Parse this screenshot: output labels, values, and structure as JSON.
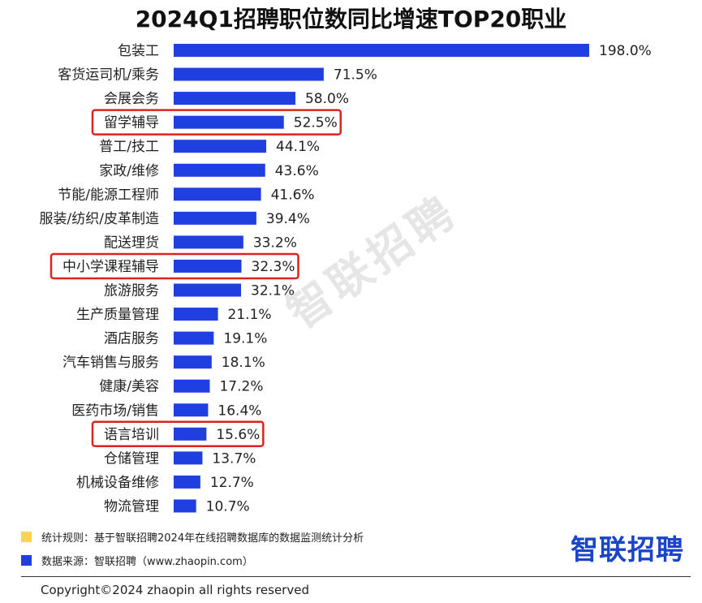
{
  "chart_data": {
    "type": "bar",
    "orientation": "horizontal",
    "title": "2024Q1招聘职位数同比增速TOP20职业",
    "categories": [
      "包装工",
      "客货运司机/乘务",
      "会展会务",
      "留学辅导",
      "普工/技工",
      "家政/维修",
      "节能/能源工程师",
      "服装/纺织/皮革制造",
      "配送理货",
      "中小学课程辅导",
      "旅游服务",
      "生产质量管理",
      "酒店服务",
      "汽车销售与服务",
      "健康/美容",
      "医药市场/销售",
      "语言培训",
      "仓储管理",
      "机械设备维修",
      "物流管理"
    ],
    "values": [
      198.0,
      71.5,
      58.0,
      52.5,
      44.1,
      43.6,
      41.6,
      39.4,
      33.2,
      32.3,
      32.1,
      21.1,
      19.1,
      18.1,
      17.2,
      16.4,
      15.6,
      13.7,
      12.7,
      10.7
    ],
    "value_labels": [
      "198.0%",
      "71.5%",
      "58.0%",
      "52.5%",
      "44.1%",
      "43.6%",
      "41.6%",
      "39.4%",
      "33.2%",
      "32.3%",
      "32.1%",
      "21.1%",
      "19.1%",
      "18.1%",
      "17.2%",
      "16.4%",
      "15.6%",
      "13.7%",
      "12.7%",
      "10.7%"
    ],
    "highlighted_categories": [
      "留学辅导",
      "中小学课程辅导",
      "语言培训"
    ],
    "bar_color": "#1f3fe0",
    "highlight_color": "#d9241d",
    "xlim": [
      0,
      198
    ],
    "grid": false,
    "legend": "none"
  },
  "watermark": "智联招聘",
  "notes": [
    {
      "text": "统计规则：基于智联招聘2024年在线招聘数据库的数据监测统计分析",
      "color": "#f9d35a"
    },
    {
      "text": "数据来源：智联招聘（www.zhaopin.com）",
      "color": "#1f3fe0"
    }
  ],
  "logo": "智联招聘",
  "copyright": "Copyright©2024 zhaopin all rights reserved"
}
